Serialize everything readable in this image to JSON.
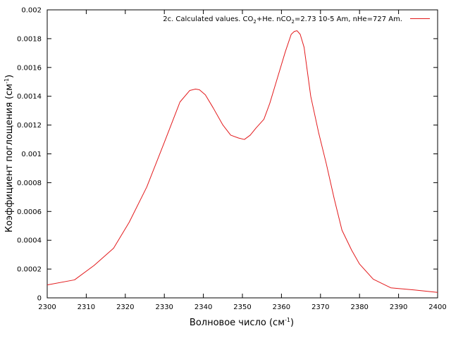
{
  "chart_data": {
    "type": "line",
    "xlabel_main": "Волновое число (см",
    "xlabel_sup": "-1",
    "xlabel_end": ")",
    "ylabel_main": "Коэффициент поглощения (см",
    "ylabel_sup": "-1",
    "ylabel_end": ")",
    "xlim": [
      2300,
      2400
    ],
    "ylim": [
      0,
      0.002
    ],
    "xticks": [
      2300,
      2310,
      2320,
      2330,
      2340,
      2350,
      2360,
      2370,
      2380,
      2390,
      2400
    ],
    "yticks": [
      0,
      0.0002,
      0.0004,
      0.0006,
      0.0008,
      0.001,
      0.0012,
      0.0014,
      0.0016,
      0.0018,
      0.002
    ],
    "ytick_labels": [
      "0",
      "0.0002",
      "0.0004",
      "0.0006",
      "0.0008",
      "0.001",
      "0.0012",
      "0.0014",
      "0.0016",
      "0.0018",
      "0.002"
    ],
    "grid": false,
    "legend_position": "top-right",
    "series": [
      {
        "name_parts": [
          "2c. Calculated values. CO",
          "2",
          "+He. nCO",
          "2",
          "=2.73 10-5 Am, nHe=727 Am."
        ],
        "color": "#e31a1c",
        "x": [
          2300,
          2307,
          2312,
          2317,
          2321,
          2325.5,
          2330,
          2334,
          2336.5,
          2338,
          2339,
          2340.5,
          2342.5,
          2345,
          2347,
          2349,
          2350.5,
          2352,
          2353.5,
          2355.5,
          2357,
          2359,
          2361,
          2362.5,
          2363.3,
          2364,
          2364.8,
          2365.8,
          2367.5,
          2369.5,
          2371.5,
          2373.5,
          2375.5,
          2378,
          2380,
          2383.5,
          2388,
          2394,
          2400
        ],
        "y": [
          9e-05,
          0.000125,
          0.000225,
          0.000345,
          0.000525,
          0.00077,
          0.00108,
          0.00136,
          0.00144,
          0.00145,
          0.001445,
          0.00141,
          0.00132,
          0.0012,
          0.00113,
          0.00111,
          0.0011,
          0.00113,
          0.00118,
          0.00124,
          0.00135,
          0.00153,
          0.00171,
          0.00183,
          0.00185,
          0.001855,
          0.00183,
          0.00174,
          0.0014,
          0.00115,
          0.00093,
          0.00069,
          0.00047,
          0.00033,
          0.000235,
          0.00013,
          7e-05,
          5.5e-05,
          3.8e-05
        ]
      }
    ]
  }
}
